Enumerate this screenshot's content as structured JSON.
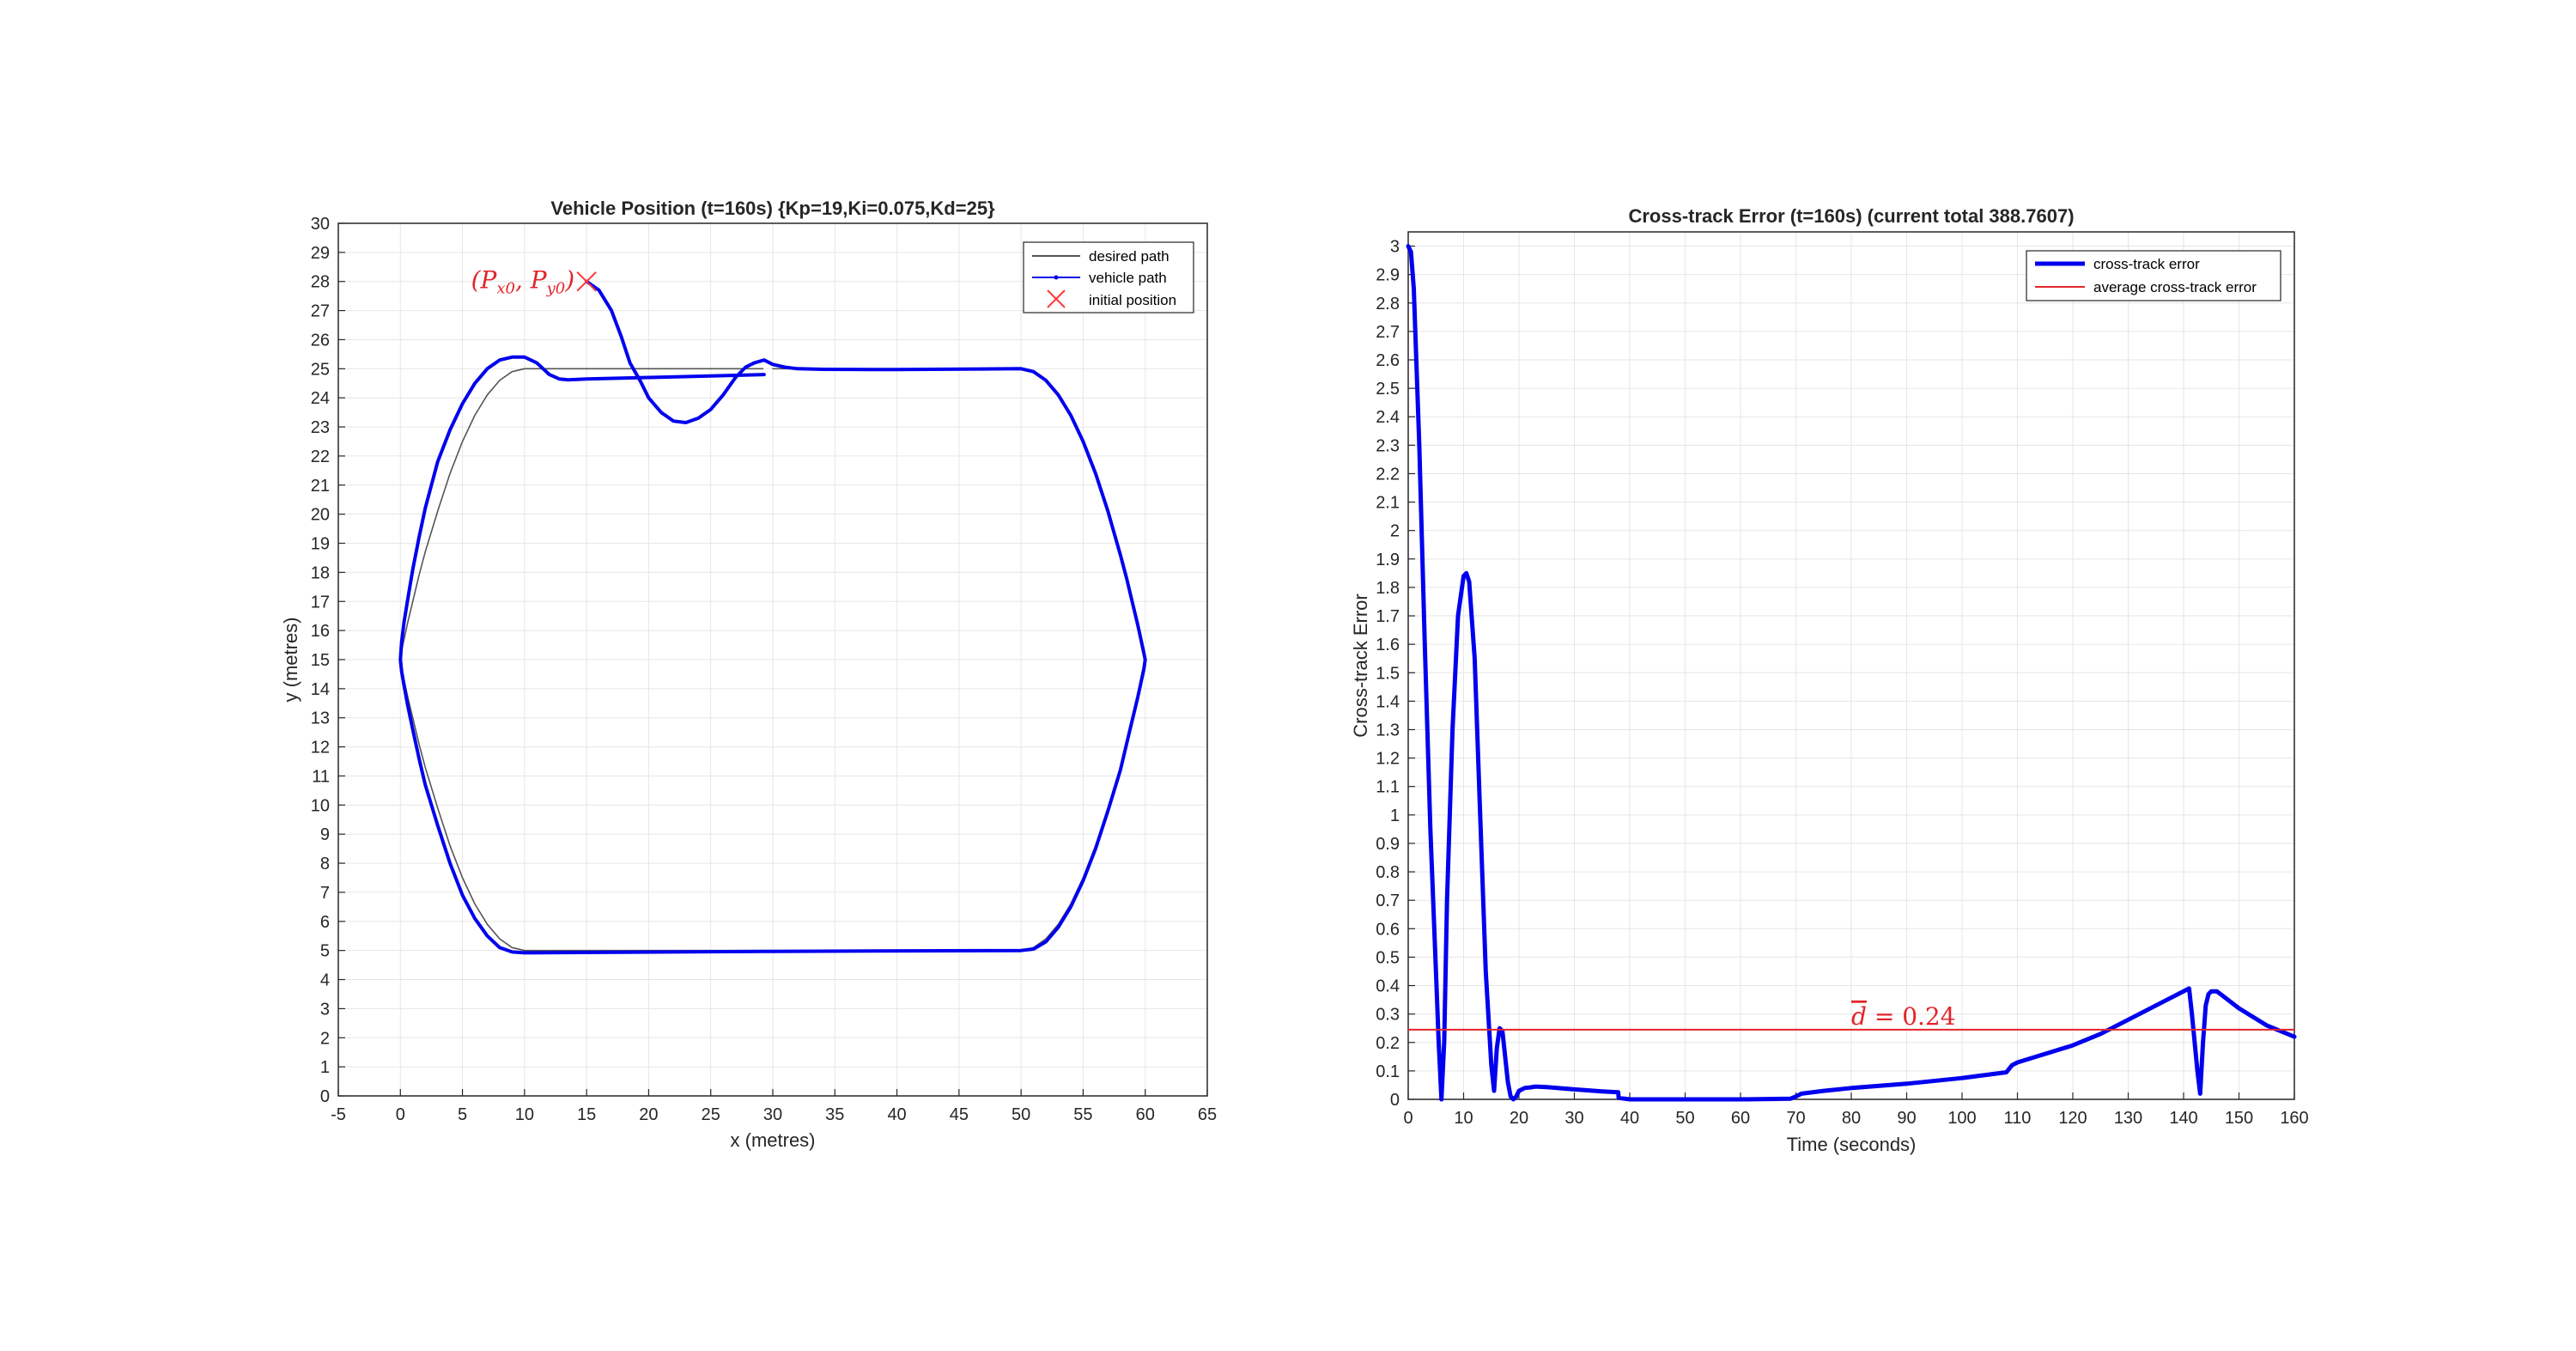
{
  "colors": {
    "vehicle_path": "#0000ee",
    "desired_path": "#555555",
    "initial_marker": "#ff3b3b",
    "cte_line": "#0000ee",
    "avg_line": "#e3242b",
    "grid": "#e6e6e6",
    "axis": "#262626"
  },
  "chart_data": [
    {
      "type": "line",
      "title": "Vehicle Position (t=160s) {Kp=19,Ki=0.075,Kd=25}",
      "xlabel": "x (metres)",
      "ylabel": "y (metres)",
      "xlim": [
        -5,
        65
      ],
      "ylim": [
        0,
        30
      ],
      "xticks": [
        -5,
        0,
        5,
        10,
        15,
        20,
        25,
        30,
        35,
        40,
        45,
        50,
        55,
        60,
        65
      ],
      "yticks": [
        0,
        1,
        2,
        3,
        4,
        5,
        6,
        7,
        8,
        9,
        10,
        11,
        12,
        13,
        14,
        15,
        16,
        17,
        18,
        19,
        20,
        21,
        22,
        23,
        24,
        25,
        26,
        27,
        28,
        29,
        30
      ],
      "grid": true,
      "legend_position": "top-right",
      "legend": [
        "desired path",
        "vehicle path",
        "initial position"
      ],
      "annotation": {
        "x": 15,
        "y": 28,
        "base": "(P",
        "sub_x": "x0",
        "sep": ", P",
        "sub_y": "y0",
        "close": ")"
      },
      "series": [
        {
          "name": "desired path",
          "x": [
            29.2,
            10,
            9,
            8,
            7,
            6,
            5,
            4,
            3,
            2,
            1.5,
            1,
            0.6,
            0.3,
            0.1,
            0,
            0.1,
            0.3,
            0.6,
            1,
            1.5,
            2,
            3,
            4,
            5,
            6,
            7,
            8,
            9,
            10,
            50,
            51,
            52,
            53,
            54,
            55,
            56,
            57,
            58,
            58.5,
            59,
            59.4,
            59.7,
            59.9,
            60,
            59.9,
            59.7,
            59.4,
            59,
            58.5,
            58,
            57,
            56,
            55,
            54,
            53,
            52,
            51,
            50,
            30
          ],
          "y": [
            25,
            25,
            24.9,
            24.6,
            24.1,
            23.4,
            22.5,
            21.4,
            20.1,
            18.7,
            17.9,
            17.0,
            16.3,
            15.7,
            15.3,
            15,
            14.7,
            14.3,
            13.7,
            13.0,
            12.1,
            11.3,
            9.9,
            8.6,
            7.5,
            6.6,
            5.9,
            5.4,
            5.1,
            5,
            5,
            5.1,
            5.4,
            5.9,
            6.6,
            7.5,
            8.6,
            9.9,
            11.3,
            12.1,
            13.0,
            13.7,
            14.3,
            14.7,
            15,
            15.3,
            15.7,
            16.3,
            17.0,
            17.9,
            18.7,
            20.1,
            21.4,
            22.5,
            23.4,
            24.1,
            24.6,
            24.9,
            25,
            25
          ]
        },
        {
          "name": "vehicle path",
          "x": [
            15,
            16,
            17,
            17.8,
            18.5,
            19.3,
            20,
            21,
            22,
            23,
            24,
            25,
            26,
            27,
            27.8,
            28.5,
            29.3,
            30,
            31,
            32,
            34,
            40,
            50,
            51,
            52,
            53,
            54,
            55,
            56,
            57,
            58,
            58.5,
            59,
            59.4,
            59.7,
            59.9,
            60,
            59.9,
            59.7,
            59.4,
            59,
            58.5,
            58,
            57,
            56,
            55,
            54,
            53,
            52,
            51,
            50,
            30,
            10,
            9,
            8,
            7,
            6,
            5,
            4,
            3,
            2,
            1.5,
            1,
            0.6,
            0.3,
            0.1,
            0,
            0.1,
            0.3,
            0.6,
            1,
            1.5,
            2,
            3,
            4,
            5,
            6,
            7,
            8,
            9,
            10,
            11,
            12,
            12.8,
            13.5,
            15,
            20,
            25,
            29.3
          ],
          "y": [
            28.0,
            27.7,
            27.0,
            26.1,
            25.2,
            24.6,
            24.0,
            23.5,
            23.2,
            23.15,
            23.3,
            23.6,
            24.1,
            24.7,
            25.05,
            25.2,
            25.3,
            25.15,
            25.05,
            25.0,
            24.98,
            24.97,
            25.0,
            24.9,
            24.6,
            24.1,
            23.4,
            22.5,
            21.4,
            20.1,
            18.6,
            17.8,
            16.9,
            16.2,
            15.6,
            15.2,
            15,
            14.7,
            14.3,
            13.7,
            13.0,
            12.1,
            11.2,
            9.8,
            8.5,
            7.4,
            6.5,
            5.8,
            5.3,
            5.05,
            5.0,
            4.97,
            4.92,
            4.95,
            5.1,
            5.5,
            6.1,
            6.9,
            8.0,
            9.3,
            10.7,
            11.6,
            12.6,
            13.4,
            14.1,
            14.6,
            15,
            15.6,
            16.3,
            17.1,
            18.1,
            19.2,
            20.2,
            21.8,
            22.9,
            23.8,
            24.5,
            25.0,
            25.3,
            25.4,
            25.4,
            25.2,
            24.8,
            24.65,
            24.62,
            24.65,
            24.7,
            24.75,
            24.8
          ]
        }
      ]
    },
    {
      "type": "line",
      "title": "Cross-track Error (t=160s) (current total 388.7607)",
      "xlabel": "Time (seconds)",
      "ylabel": "Cross-track Error",
      "xlim": [
        0,
        160
      ],
      "ylim": [
        0,
        3.05
      ],
      "xticks": [
        0,
        10,
        20,
        30,
        40,
        50,
        60,
        70,
        80,
        90,
        100,
        110,
        120,
        130,
        140,
        150,
        160
      ],
      "yticks": [
        0,
        0.1,
        0.2,
        0.3,
        0.4,
        0.5,
        0.6,
        0.7,
        0.8,
        0.9,
        1,
        1.1,
        1.2,
        1.3,
        1.4,
        1.5,
        1.6,
        1.7,
        1.8,
        1.9,
        2,
        2.1,
        2.2,
        2.3,
        2.4,
        2.5,
        2.6,
        2.7,
        2.8,
        2.9,
        3
      ],
      "grid": true,
      "legend_position": "top-right",
      "legend": [
        "cross-track error",
        "average cross-track error"
      ],
      "annotation": {
        "x": 80,
        "y": 0.245,
        "symbol": "d",
        "text": " = 0.24"
      },
      "series": [
        {
          "name": "cross-track error",
          "x": [
            0,
            0.5,
            1,
            2,
            3,
            4,
            5,
            5.5,
            6,
            6.5,
            7,
            8,
            9,
            10,
            10.5,
            11,
            12,
            13,
            14,
            15,
            15.5,
            16,
            16.5,
            17,
            17.5,
            18,
            18.5,
            19,
            19.5,
            20,
            21,
            22,
            23,
            25,
            30,
            35,
            37.9,
            38,
            40,
            50,
            60,
            69,
            70,
            71,
            75,
            80,
            90,
            100,
            108,
            109,
            110,
            120,
            125,
            130,
            135,
            140,
            141,
            141.5,
            142,
            142.5,
            143,
            143.5,
            144,
            144.5,
            145,
            146,
            147,
            150,
            155,
            160
          ],
          "y": [
            3.0,
            2.98,
            2.85,
            2.3,
            1.6,
            0.95,
            0.45,
            0.2,
            0.0,
            0.2,
            0.7,
            1.3,
            1.7,
            1.84,
            1.85,
            1.82,
            1.55,
            1.0,
            0.45,
            0.12,
            0.03,
            0.18,
            0.25,
            0.24,
            0.15,
            0.06,
            0.01,
            0.0,
            0.01,
            0.03,
            0.04,
            0.042,
            0.045,
            0.043,
            0.035,
            0.028,
            0.025,
            0.005,
            0.0,
            0.0,
            0.0,
            0.002,
            0.01,
            0.02,
            0.03,
            0.04,
            0.055,
            0.075,
            0.095,
            0.12,
            0.13,
            0.19,
            0.23,
            0.28,
            0.33,
            0.38,
            0.39,
            0.3,
            0.2,
            0.1,
            0.02,
            0.2,
            0.33,
            0.37,
            0.38,
            0.38,
            0.365,
            0.32,
            0.26,
            0.22
          ]
        },
        {
          "name": "average cross-track error",
          "x": [
            0,
            160
          ],
          "y": [
            0.245,
            0.245
          ]
        }
      ]
    }
  ]
}
